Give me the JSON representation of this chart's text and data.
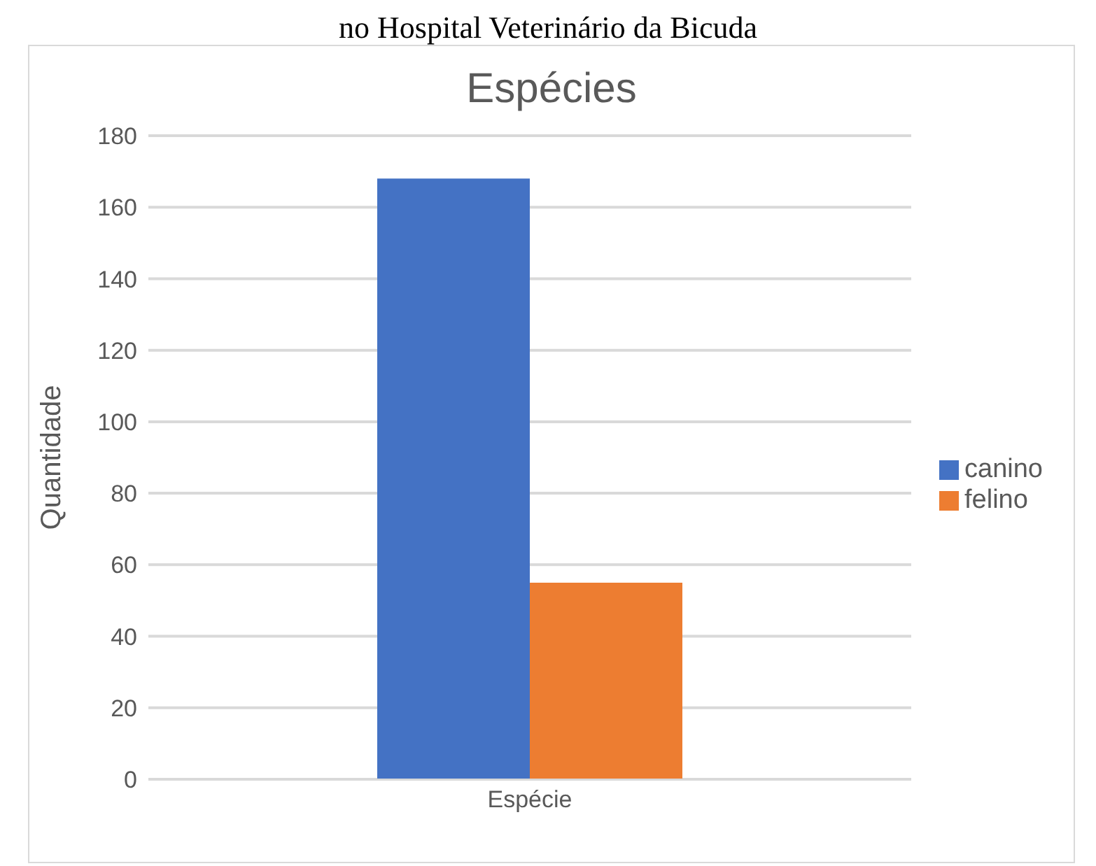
{
  "chart_data": {
    "type": "bar",
    "title": "Espécies",
    "ylabel": "Quantidade",
    "categories": [
      "Espécie"
    ],
    "series": [
      {
        "name": "canino",
        "color": "#4472c4",
        "values": [
          168
        ]
      },
      {
        "name": "felino",
        "color": "#ed7d31",
        "values": [
          55
        ]
      }
    ],
    "ylim": [
      0,
      180
    ],
    "yticks": [
      0,
      20,
      40,
      60,
      80,
      100,
      120,
      140,
      160,
      180
    ],
    "grid": "y",
    "legend": "right",
    "annotations": [
      "no Hospital Veterinário da Bicuda"
    ]
  }
}
